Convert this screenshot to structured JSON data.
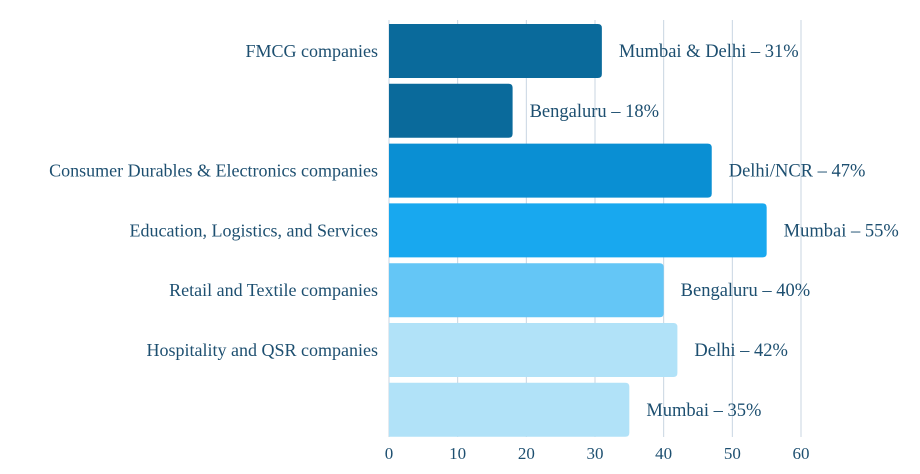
{
  "chart_data": {
    "type": "bar",
    "orientation": "horizontal",
    "categories": [
      "FMCG companies",
      "",
      "Consumer Durables & Electronics companies",
      "Education, Logistics, and Services",
      "Retail and Textile companies",
      "Hospitality and QSR companies",
      ""
    ],
    "values": [
      31,
      18,
      47,
      55,
      40,
      42,
      35
    ],
    "data_labels": [
      "Mumbai & Delhi – 31%",
      "Bengaluru – 18%",
      "Delhi/NCR – 47%",
      "Mumbai – 55%",
      "Bengaluru – 40%",
      "Delhi – 42%",
      "Mumbai – 35%"
    ],
    "colors": [
      "#0a6a9b",
      "#0a6a9b",
      "#0a8fd3",
      "#18a8ef",
      "#64c6f6",
      "#b1e2f8",
      "#b1e2f8"
    ],
    "xlim": [
      0,
      60
    ],
    "xticks": [
      "0",
      "10",
      "20",
      "30",
      "40",
      "50",
      "60"
    ],
    "grid": true,
    "title": "",
    "xlabel": "",
    "ylabel": ""
  }
}
